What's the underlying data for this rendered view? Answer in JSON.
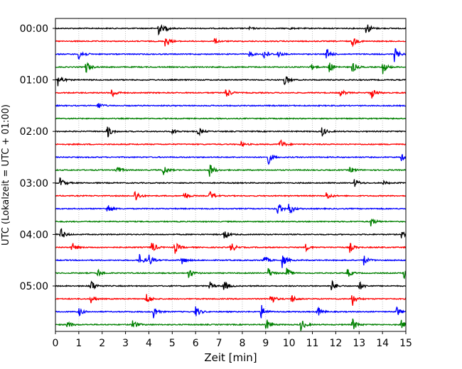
{
  "chart_data": {
    "type": "line",
    "xlabel": "Zeit  [min]",
    "ylabel": "UTC (Lokalzeit = UTC + 01:00)",
    "xlim": [
      0,
      15
    ],
    "x_ticks": [
      "0",
      "1",
      "2",
      "3",
      "4",
      "5",
      "6",
      "7",
      "8",
      "9",
      "10",
      "11",
      "12",
      "13",
      "14",
      "15"
    ],
    "y_tick_labels": [
      "00:00",
      "01:00",
      "02:00",
      "03:00",
      "04:00",
      "05:00"
    ],
    "grid": "vertical-dotted",
    "trace_interval_minutes": 15,
    "colors": [
      "#000000",
      "#ff0000",
      "#0000ff",
      "#008000"
    ],
    "traces": [
      {
        "start": "00:00",
        "color": "#000000",
        "events": [
          [
            4.4,
            0.9
          ],
          [
            4.7,
            0.3
          ],
          [
            8.3,
            0.15
          ],
          [
            10.0,
            0.12
          ],
          [
            13.3,
            1.0
          ]
        ]
      },
      {
        "start": "00:15",
        "color": "#ff0000",
        "events": [
          [
            4.7,
            1.0
          ],
          [
            6.8,
            0.35
          ],
          [
            12.7,
            0.8
          ]
        ]
      },
      {
        "start": "00:30",
        "color": "#0000ff",
        "events": [
          [
            1.0,
            1.0
          ],
          [
            8.3,
            0.4
          ],
          [
            8.9,
            0.9
          ],
          [
            9.5,
            0.5
          ],
          [
            11.6,
            0.9
          ],
          [
            14.5,
            1.0
          ]
        ]
      },
      {
        "start": "00:45",
        "color": "#008000",
        "events": [
          [
            1.3,
            0.9
          ],
          [
            10.9,
            0.5
          ],
          [
            11.7,
            0.8
          ],
          [
            12.7,
            0.8
          ],
          [
            14.0,
            1.0
          ]
        ]
      },
      {
        "start": "01:00",
        "color": "#000000",
        "events": [
          [
            0.1,
            1.0
          ],
          [
            9.8,
            0.8
          ]
        ]
      },
      {
        "start": "01:15",
        "color": "#ff0000",
        "events": [
          [
            2.4,
            0.8
          ],
          [
            7.3,
            0.9
          ],
          [
            12.2,
            0.5
          ],
          [
            13.5,
            0.9
          ]
        ]
      },
      {
        "start": "01:30",
        "color": "#0000ff",
        "events": [
          [
            1.8,
            0.6
          ]
        ]
      },
      {
        "start": "01:45",
        "color": "#008000",
        "events": []
      },
      {
        "start": "02:00",
        "color": "#000000",
        "events": [
          [
            2.2,
            1.0
          ],
          [
            5.0,
            0.4
          ],
          [
            6.1,
            0.6
          ],
          [
            11.4,
            0.7
          ]
        ]
      },
      {
        "start": "02:15",
        "color": "#ff0000",
        "events": [
          [
            7.9,
            0.4
          ],
          [
            9.6,
            0.8
          ]
        ]
      },
      {
        "start": "02:30",
        "color": "#0000ff",
        "events": [
          [
            9.1,
            1.0
          ],
          [
            14.8,
            0.5
          ]
        ]
      },
      {
        "start": "02:45",
        "color": "#008000",
        "events": [
          [
            2.6,
            0.8
          ],
          [
            4.6,
            0.8
          ],
          [
            6.6,
            1.0
          ],
          [
            12.6,
            0.5
          ]
        ]
      },
      {
        "start": "03:00",
        "color": "#000000",
        "events": [
          [
            0.2,
            0.8
          ],
          [
            12.8,
            0.6
          ],
          [
            14.0,
            0.3
          ]
        ]
      },
      {
        "start": "03:15",
        "color": "#ff0000",
        "events": [
          [
            3.4,
            1.0
          ],
          [
            5.5,
            0.6
          ],
          [
            6.6,
            0.7
          ],
          [
            11.6,
            0.6
          ]
        ]
      },
      {
        "start": "03:30",
        "color": "#0000ff",
        "events": [
          [
            2.2,
            0.8
          ],
          [
            9.5,
            1.0
          ],
          [
            10.0,
            1.0
          ]
        ]
      },
      {
        "start": "03:45",
        "color": "#008000",
        "events": [
          [
            13.5,
            0.7
          ]
        ]
      },
      {
        "start": "04:00",
        "color": "#000000",
        "events": [
          [
            0.2,
            1.0
          ],
          [
            7.2,
            0.8
          ],
          [
            14.8,
            0.5
          ]
        ]
      },
      {
        "start": "04:15",
        "color": "#ff0000",
        "events": [
          [
            0.7,
            0.7
          ],
          [
            4.1,
            1.0
          ],
          [
            5.1,
            0.9
          ],
          [
            7.5,
            0.8
          ],
          [
            10.7,
            0.5
          ],
          [
            12.6,
            0.7
          ]
        ]
      },
      {
        "start": "04:30",
        "color": "#0000ff",
        "events": [
          [
            3.6,
            0.8
          ],
          [
            4.0,
            0.8
          ],
          [
            5.4,
            0.6
          ],
          [
            8.9,
            0.8
          ],
          [
            9.7,
            1.0
          ],
          [
            13.2,
            0.7
          ]
        ]
      },
      {
        "start": "04:45",
        "color": "#008000",
        "events": [
          [
            1.8,
            0.6
          ],
          [
            5.7,
            0.7
          ],
          [
            9.1,
            0.7
          ],
          [
            9.9,
            0.7
          ],
          [
            12.5,
            0.6
          ],
          [
            14.9,
            1.0
          ]
        ]
      },
      {
        "start": "05:00",
        "color": "#000000",
        "events": [
          [
            1.5,
            1.0
          ],
          [
            6.6,
            0.6
          ],
          [
            7.2,
            0.8
          ],
          [
            11.8,
            0.9
          ],
          [
            13.0,
            0.6
          ]
        ]
      },
      {
        "start": "05:15",
        "color": "#ff0000",
        "events": [
          [
            1.5,
            0.6
          ],
          [
            3.9,
            0.8
          ],
          [
            9.2,
            0.8
          ],
          [
            10.1,
            0.6
          ],
          [
            12.7,
            1.0
          ]
        ]
      },
      {
        "start": "05:30",
        "color": "#0000ff",
        "events": [
          [
            1.0,
            0.6
          ],
          [
            4.2,
            1.0
          ],
          [
            6.0,
            0.9
          ],
          [
            8.8,
            1.0
          ],
          [
            11.2,
            0.8
          ],
          [
            14.6,
            0.7
          ]
        ]
      },
      {
        "start": "05:45",
        "color": "#008000",
        "events": [
          [
            0.5,
            0.6
          ],
          [
            3.3,
            0.8
          ],
          [
            9.0,
            0.9
          ],
          [
            10.5,
            0.9
          ],
          [
            12.7,
            1.0
          ],
          [
            14.8,
            0.6
          ]
        ]
      }
    ]
  }
}
